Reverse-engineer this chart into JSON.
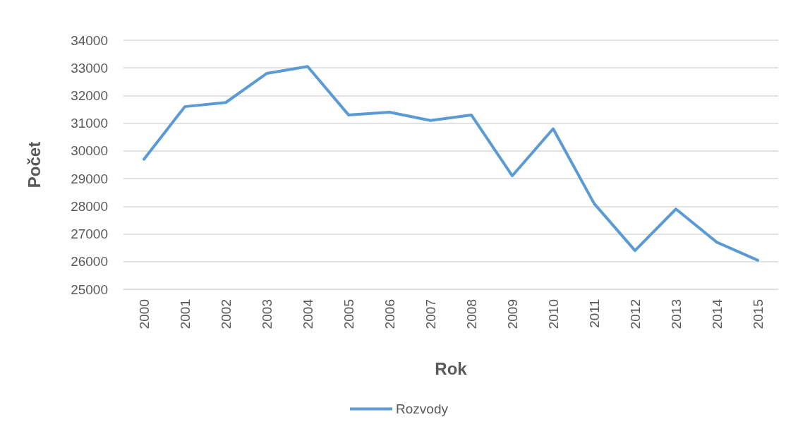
{
  "chart_data": {
    "type": "line",
    "xlabel": "Rok",
    "ylabel": "Počet",
    "categories": [
      "2000",
      "2001",
      "2002",
      "2003",
      "2004",
      "2005",
      "2006",
      "2007",
      "2008",
      "2009",
      "2010",
      "2011",
      "2012",
      "2013",
      "2014",
      "2015"
    ],
    "series": [
      {
        "name": "Rozvody",
        "color": "#5b9bd5",
        "values": [
          29700,
          31600,
          31750,
          32800,
          33050,
          31300,
          31400,
          31100,
          31300,
          29100,
          30800,
          28100,
          26400,
          27900,
          26700,
          26050
        ]
      }
    ],
    "ylim": [
      25000,
      34000
    ],
    "yticks": [
      25000,
      26000,
      27000,
      28000,
      29000,
      30000,
      31000,
      32000,
      33000,
      34000
    ],
    "grid": "y",
    "legend": "bottom",
    "marker": "none",
    "line_style": "solid"
  }
}
